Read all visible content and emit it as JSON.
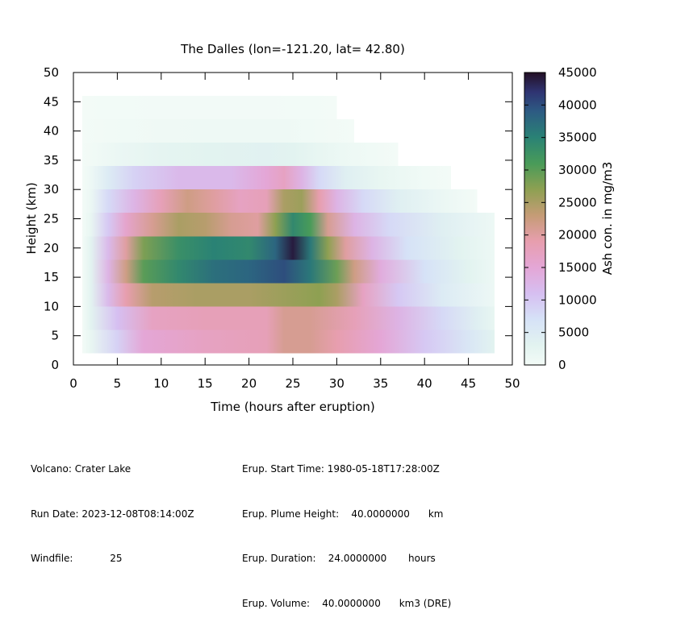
{
  "chart_data": {
    "type": "heatmap",
    "title": "The Dalles (lon=-121.20, lat= 42.80)",
    "xlabel": "Time (hours after eruption)",
    "ylabel": "Height (km)",
    "xlim": [
      0,
      50
    ],
    "ylim": [
      0,
      50
    ],
    "x_ticks": [
      "0",
      "5",
      "10",
      "15",
      "20",
      "25",
      "30",
      "35",
      "40",
      "45",
      "50"
    ],
    "y_ticks": [
      "0",
      "5",
      "10",
      "15",
      "20",
      "25",
      "30",
      "35",
      "40",
      "45",
      "50"
    ],
    "colorbar": {
      "label": "Ash con. in mg/m3",
      "range": [
        0,
        45000
      ],
      "ticks": [
        "0",
        "5000",
        "10000",
        "15000",
        "20000",
        "25000",
        "30000",
        "35000",
        "40000",
        "45000"
      ]
    },
    "grid": false,
    "layers": [
      {
        "y0": 2,
        "y1": 6,
        "points": [
          [
            1,
            0
          ],
          [
            2,
            2000
          ],
          [
            5,
            9000
          ],
          [
            8,
            15000
          ],
          [
            15,
            17000
          ],
          [
            22,
            18000
          ],
          [
            24,
            21000
          ],
          [
            27,
            21000
          ],
          [
            30,
            19000
          ],
          [
            35,
            15000
          ],
          [
            40,
            10000
          ],
          [
            45,
            6000
          ],
          [
            48,
            3000
          ]
        ]
      },
      {
        "y0": 6,
        "y1": 10,
        "points": [
          [
            1,
            0
          ],
          [
            2,
            3000
          ],
          [
            5,
            11000
          ],
          [
            9,
            17000
          ],
          [
            15,
            18000
          ],
          [
            22,
            18000
          ],
          [
            24,
            21000
          ],
          [
            27,
            21000
          ],
          [
            32,
            18000
          ],
          [
            37,
            13000
          ],
          [
            42,
            8000
          ],
          [
            46,
            4000
          ],
          [
            48,
            2000
          ]
        ]
      },
      {
        "y0": 10,
        "y1": 14,
        "points": [
          [
            1,
            0
          ],
          [
            2,
            3000
          ],
          [
            4,
            12000
          ],
          [
            6,
            19000
          ],
          [
            9,
            24000
          ],
          [
            14,
            25000
          ],
          [
            20,
            25000
          ],
          [
            24,
            26000
          ],
          [
            28,
            27000
          ],
          [
            30,
            25000
          ],
          [
            33,
            17000
          ],
          [
            37,
            10000
          ],
          [
            42,
            5000
          ],
          [
            48,
            1000
          ]
        ]
      },
      {
        "y0": 14,
        "y1": 18,
        "points": [
          [
            1,
            0
          ],
          [
            2,
            3000
          ],
          [
            4,
            13000
          ],
          [
            6,
            22000
          ],
          [
            8,
            30000
          ],
          [
            12,
            34000
          ],
          [
            16,
            37000
          ],
          [
            20,
            38000
          ],
          [
            24,
            40000
          ],
          [
            27,
            36000
          ],
          [
            30,
            29000
          ],
          [
            32,
            22000
          ],
          [
            35,
            14000
          ],
          [
            40,
            7000
          ],
          [
            45,
            3000
          ],
          [
            48,
            1000
          ]
        ]
      },
      {
        "y0": 18,
        "y1": 22,
        "points": [
          [
            1,
            0
          ],
          [
            2,
            3000
          ],
          [
            4,
            12000
          ],
          [
            6,
            20000
          ],
          [
            8,
            28000
          ],
          [
            12,
            33000
          ],
          [
            16,
            35000
          ],
          [
            20,
            34000
          ],
          [
            23,
            38000
          ],
          [
            25,
            44000
          ],
          [
            27,
            36000
          ],
          [
            29,
            27000
          ],
          [
            31,
            20000
          ],
          [
            34,
            13000
          ],
          [
            38,
            7000
          ],
          [
            44,
            3000
          ],
          [
            48,
            1000
          ]
        ]
      },
      {
        "y0": 22,
        "y1": 26,
        "points": [
          [
            1,
            0
          ],
          [
            2,
            2000
          ],
          [
            4,
            10000
          ],
          [
            6,
            16000
          ],
          [
            9,
            21000
          ],
          [
            12,
            25000
          ],
          [
            15,
            24000
          ],
          [
            18,
            21000
          ],
          [
            21,
            20000
          ],
          [
            23,
            27000
          ],
          [
            25,
            34000
          ],
          [
            27,
            31000
          ],
          [
            29,
            21000
          ],
          [
            32,
            13000
          ],
          [
            36,
            8000
          ],
          [
            42,
            4000
          ],
          [
            48,
            1000
          ]
        ]
      },
      {
        "y0": 26,
        "y1": 30,
        "points": [
          [
            1,
            0
          ],
          [
            2,
            1500
          ],
          [
            4,
            8000
          ],
          [
            7,
            13000
          ],
          [
            10,
            18000
          ],
          [
            13,
            22000
          ],
          [
            16,
            20000
          ],
          [
            19,
            17000
          ],
          [
            22,
            18000
          ],
          [
            24,
            25000
          ],
          [
            26,
            26000
          ],
          [
            28,
            19000
          ],
          [
            30,
            13000
          ],
          [
            33,
            8000
          ],
          [
            37,
            4000
          ],
          [
            42,
            1500
          ],
          [
            46,
            0
          ]
        ]
      },
      {
        "y0": 30,
        "y1": 34,
        "points": [
          [
            1,
            0
          ],
          [
            2,
            1000
          ],
          [
            4,
            5000
          ],
          [
            7,
            9000
          ],
          [
            12,
            12000
          ],
          [
            18,
            12000
          ],
          [
            22,
            15000
          ],
          [
            24,
            17000
          ],
          [
            26,
            13000
          ],
          [
            28,
            8000
          ],
          [
            31,
            4000
          ],
          [
            35,
            2000
          ],
          [
            40,
            500
          ],
          [
            43,
            0
          ]
        ]
      },
      {
        "y0": 34,
        "y1": 38,
        "points": [
          [
            1,
            0
          ],
          [
            2,
            300
          ],
          [
            5,
            1500
          ],
          [
            10,
            2500
          ],
          [
            16,
            3000
          ],
          [
            22,
            3500
          ],
          [
            25,
            3000
          ],
          [
            28,
            2000
          ],
          [
            32,
            800
          ],
          [
            37,
            0
          ]
        ]
      },
      {
        "y0": 38,
        "y1": 42,
        "points": [
          [
            1,
            0
          ],
          [
            4,
            300
          ],
          [
            10,
            700
          ],
          [
            18,
            900
          ],
          [
            24,
            800
          ],
          [
            28,
            400
          ],
          [
            32,
            0
          ]
        ]
      },
      {
        "y0": 42,
        "y1": 46,
        "points": [
          [
            1,
            0
          ],
          [
            5,
            100
          ],
          [
            12,
            200
          ],
          [
            20,
            200
          ],
          [
            26,
            100
          ],
          [
            30,
            0
          ]
        ]
      }
    ]
  },
  "info_left": [
    "Volcano: Crater Lake",
    "Run Date: 2023-12-08T08:14:00Z",
    "Windfile:            25"
  ],
  "info_right": [
    "Erup. Start Time: 1980-05-18T17:28:00Z",
    "Erup. Plume Height:    40.0000000      km",
    "Erup. Duration:    24.0000000       hours",
    "Erup. Volume:    40.0000000      km3 (DRE)"
  ],
  "colormap": [
    [
      0,
      "#f3fbf7"
    ],
    [
      3000,
      "#e2f3f0"
    ],
    [
      7000,
      "#d6e2f7"
    ],
    [
      11000,
      "#d6bff1"
    ],
    [
      15000,
      "#e4a6d6"
    ],
    [
      19000,
      "#e79eae"
    ],
    [
      23000,
      "#c59c76"
    ],
    [
      27000,
      "#8ea052"
    ],
    [
      31000,
      "#499b59"
    ],
    [
      35000,
      "#2a8275"
    ],
    [
      39000,
      "#2d5b83"
    ],
    [
      42000,
      "#2f3472"
    ],
    [
      45000,
      "#230f24"
    ]
  ]
}
